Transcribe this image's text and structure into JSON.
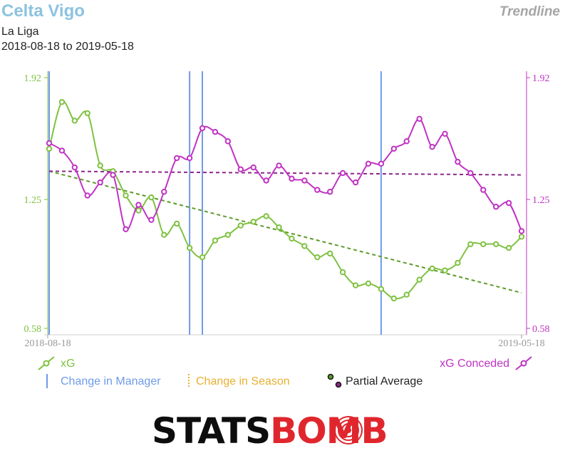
{
  "header": {
    "team": "Celta Vigo",
    "league": "La Liga",
    "date_range": "2018-08-18 to 2019-05-18",
    "view": "Trendline"
  },
  "legend": {
    "xg": "xG",
    "xg_conceded": "xG Conceded",
    "manager_change": "Change in Manager",
    "season_change": "Change in Season",
    "partial_average": "Partial Average"
  },
  "colors": {
    "xg": "#7fc241",
    "xg_conceded": "#c033c4",
    "manager": "#6e9ae8",
    "season": "#e8b030",
    "avg_green": "#5c9a2a",
    "avg_purple": "#8a2a8a",
    "brand_red": "#e0262d"
  },
  "logo": {
    "part1": "STATS",
    "part2": "BOMB"
  },
  "chart_data": {
    "type": "line",
    "x_tick_labels": [
      "2018-08-18",
      "2019-05-18"
    ],
    "left_axis": {
      "ticks": [
        "1.92",
        "1.25",
        "0.58"
      ],
      "range": [
        0.58,
        1.92
      ]
    },
    "right_axis": {
      "ticks": [
        "1.92",
        "1.25",
        "0.58"
      ],
      "range": [
        0.58,
        1.92
      ]
    },
    "grid": false,
    "x": [
      1,
      2,
      3,
      4,
      5,
      6,
      7,
      8,
      9,
      10,
      11,
      12,
      13,
      14,
      15,
      16,
      17,
      18,
      19,
      20,
      21,
      22,
      23,
      24,
      25,
      26,
      27,
      28,
      29,
      30,
      31,
      32,
      33,
      34,
      35,
      36,
      37,
      38
    ],
    "series": [
      {
        "name": "xG",
        "axis": "left",
        "values": [
          1.54,
          1.79,
          1.69,
          1.73,
          1.45,
          1.42,
          1.29,
          1.21,
          1.28,
          1.08,
          1.14,
          1.01,
          0.96,
          1.05,
          1.08,
          1.13,
          1.15,
          1.18,
          1.12,
          1.06,
          1.02,
          0.96,
          0.98,
          0.88,
          0.81,
          0.82,
          0.79,
          0.74,
          0.76,
          0.84,
          0.9,
          0.89,
          0.93,
          1.03,
          1.03,
          1.03,
          1.01,
          1.07
        ]
      },
      {
        "name": "xG Conceded",
        "axis": "right",
        "values": [
          1.57,
          1.53,
          1.44,
          1.29,
          1.36,
          1.4,
          1.11,
          1.24,
          1.16,
          1.31,
          1.49,
          1.49,
          1.65,
          1.63,
          1.58,
          1.43,
          1.44,
          1.37,
          1.45,
          1.38,
          1.37,
          1.32,
          1.31,
          1.41,
          1.36,
          1.46,
          1.46,
          1.54,
          1.58,
          1.7,
          1.55,
          1.62,
          1.47,
          1.41,
          1.32,
          1.23,
          1.25,
          1.1
        ]
      }
    ],
    "partial_averages": [
      {
        "series": "xG",
        "start": 1.42,
        "end": 0.77
      },
      {
        "series": "xG Conceded",
        "start": 1.42,
        "end": 1.4
      }
    ],
    "manager_changes": [
      1,
      12,
      13,
      27
    ]
  }
}
